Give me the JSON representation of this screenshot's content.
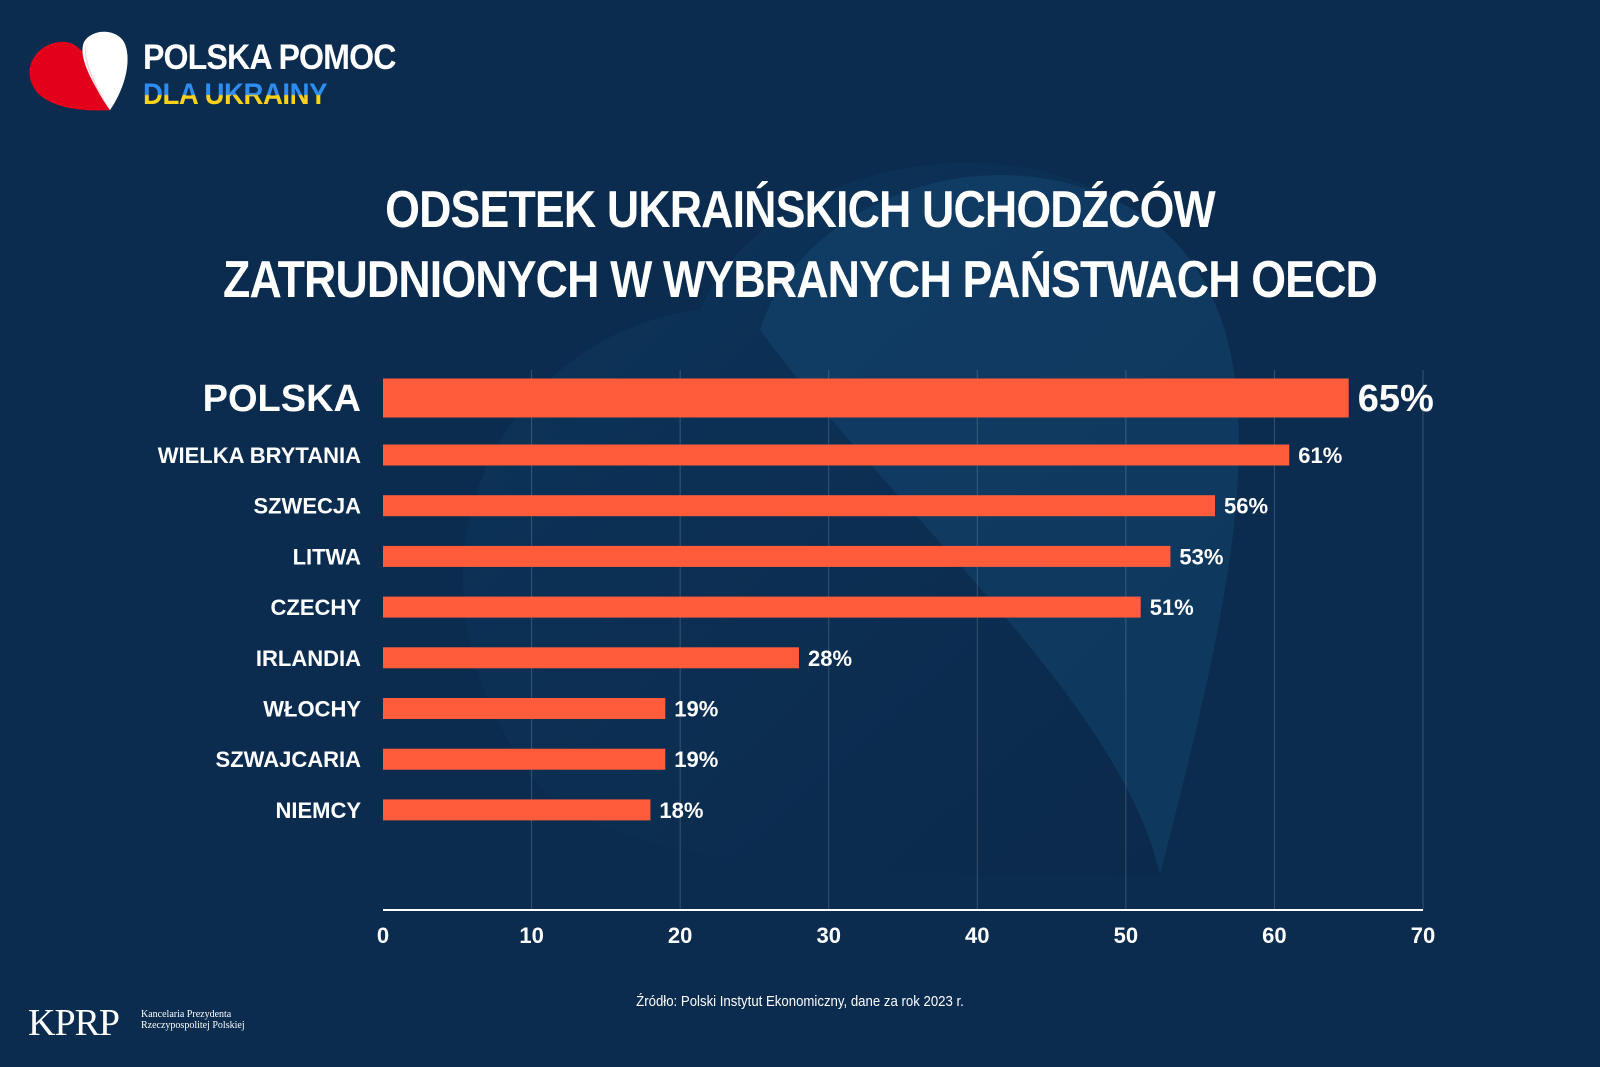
{
  "brand": {
    "line1": "POLSKA POMOC",
    "line2": "DLA UKRAINY",
    "logo_icon": "heart-icon",
    "colors": {
      "red": "#e3001b",
      "white": "#ffffff",
      "blue": "#2d8df0",
      "yellow": "#ffd21a"
    }
  },
  "title": {
    "line1": "ODSETEK UKRAIŃSKICH UCHODŹCÓW",
    "line2": "ZATRUDNIONYCH W WYBRANYCH PAŃSTWACH OECD"
  },
  "chart_data": {
    "type": "bar",
    "orientation": "horizontal",
    "categories": [
      "POLSKA",
      "WIELKA BRYTANIA",
      "SZWECJA",
      "LITWA",
      "CZECHY",
      "IRLANDIA",
      "WŁOCHY",
      "SZWAJCARIA",
      "NIEMCY"
    ],
    "values": [
      65,
      61,
      56,
      53,
      51,
      28,
      19,
      19,
      18
    ],
    "value_labels": [
      "65%",
      "61%",
      "56%",
      "53%",
      "51%",
      "28%",
      "19%",
      "19%",
      "18%"
    ],
    "highlighted": "POLSKA",
    "xlim": [
      0,
      70
    ],
    "xticks": [
      "0",
      "10",
      "20",
      "30",
      "40",
      "50",
      "60",
      "70"
    ],
    "grid": true,
    "bar_color": "#ff5c3c",
    "background_color": "#0b2c4f"
  },
  "source": "Źródło: Polski Instytut Ekonomiczny, dane za rok 2023 r.",
  "footer": {
    "mark": "KPRP",
    "name": "Kancelaria Prezydenta Rzeczypospolitej Polskiej"
  }
}
